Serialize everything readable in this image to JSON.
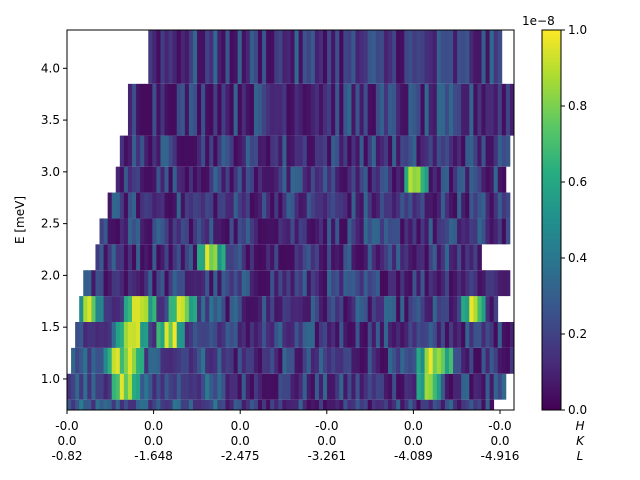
{
  "chart_data": {
    "type": "heatmap",
    "title": "",
    "xlabel": "",
    "ylabel": "E [meV]",
    "x_tick_rows": {
      "H": [
        "-0.0",
        "0.0",
        "0.0",
        "-0.0",
        "0.0",
        "-0.0"
      ],
      "K": [
        "0.0",
        "0.0",
        "0.0",
        "0.0",
        "0.0",
        "0.0"
      ],
      "L": [
        "-0.82",
        "-1.648",
        "-2.475",
        "-3.261",
        "-4.089",
        "-4.916"
      ]
    },
    "x_axis_row_labels": [
      "H",
      "K",
      "L"
    ],
    "y_ticks": [
      "1.0",
      "1.5",
      "2.0",
      "2.5",
      "3.0",
      "3.5",
      "4.0"
    ],
    "y_tick_values": [
      1.0,
      1.5,
      2.0,
      2.5,
      3.0,
      3.5,
      4.0
    ],
    "ylim": [
      0.7,
      4.37
    ],
    "colorbar": {
      "colormap": "viridis",
      "range": [
        0.0,
        1.0
      ],
      "ticks": [
        "0.0",
        "0.2",
        "0.4",
        "0.6",
        "0.8",
        "1.0"
      ],
      "tick_values": [
        0.0,
        0.2,
        0.4,
        0.6,
        0.8,
        1.0
      ],
      "offset_label": "1e−8"
    },
    "energy_bands": [
      {
        "e_low": 0.7,
        "e_high": 0.8,
        "l_start": 0.0,
        "l_end": 0.95,
        "hot": []
      },
      {
        "e_low": 0.8,
        "e_high": 1.05,
        "l_start": 0.0,
        "l_end": 0.98,
        "hot": [
          0.13,
          0.81
        ]
      },
      {
        "e_low": 1.05,
        "e_high": 1.3,
        "l_start": 0.01,
        "l_end": 1.0,
        "hot": [
          0.11,
          0.14,
          0.81,
          0.83
        ]
      },
      {
        "e_low": 1.3,
        "e_high": 1.55,
        "l_start": 0.02,
        "l_end": 1.0,
        "hot": [
          0.14,
          0.15,
          0.23
        ]
      },
      {
        "e_low": 1.55,
        "e_high": 1.8,
        "l_start": 0.03,
        "l_end": 0.96,
        "hot": [
          0.05,
          0.16,
          0.17,
          0.26,
          0.91
        ]
      },
      {
        "e_low": 1.8,
        "e_high": 2.05,
        "l_start": 0.04,
        "l_end": 0.99,
        "hot": []
      },
      {
        "e_low": 2.05,
        "e_high": 2.3,
        "l_start": 0.06,
        "l_end": 0.93,
        "hot": [
          0.32
        ]
      },
      {
        "e_low": 2.3,
        "e_high": 2.55,
        "l_start": 0.07,
        "l_end": 0.99,
        "hot": []
      },
      {
        "e_low": 2.55,
        "e_high": 2.8,
        "l_start": 0.09,
        "l_end": 0.99,
        "hot": []
      },
      {
        "e_low": 2.8,
        "e_high": 3.05,
        "l_start": 0.11,
        "l_end": 0.98,
        "hot": [
          0.78
        ]
      },
      {
        "e_low": 3.05,
        "e_high": 3.35,
        "l_start": 0.12,
        "l_end": 0.99,
        "hot": []
      },
      {
        "e_low": 3.35,
        "e_high": 3.85,
        "l_start": 0.14,
        "l_end": 1.0,
        "hot": []
      },
      {
        "e_low": 3.85,
        "e_high": 4.37,
        "l_start": 0.18,
        "l_end": 0.97,
        "hot": []
      }
    ]
  }
}
